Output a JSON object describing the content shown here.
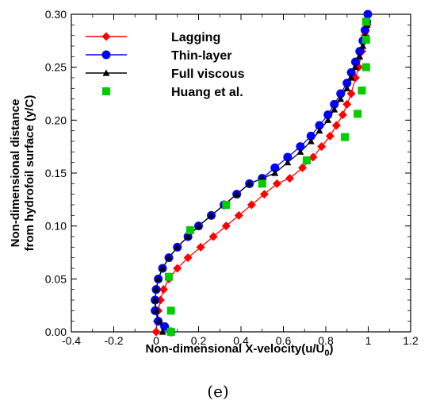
{
  "chart_data": {
    "type": "line",
    "panel_label": "(e)",
    "xlabel_main": "Non-dimensional X-velocity",
    "xlabel_unit": "(u/U",
    "xlabel_sub": "0",
    "xlabel_close": ")",
    "ylabel_line1": "Non-dimensional distance",
    "ylabel_line2": "from hydrofoil surface (y/C)",
    "xlim": [
      -0.4,
      1.2
    ],
    "ylim": [
      0.0,
      0.3
    ],
    "xticks": [
      -0.4,
      -0.2,
      0,
      0.2,
      0.4,
      0.6,
      0.8,
      1,
      1.2
    ],
    "xtick_labels": [
      "-0.4",
      "-0.2",
      "0",
      "0.2",
      "0.4",
      "0.6",
      "0.8",
      "1",
      "1.2"
    ],
    "yticks": [
      0.0,
      0.05,
      0.1,
      0.15,
      0.2,
      0.25,
      0.3
    ],
    "ytick_labels": [
      "0.00",
      "0.05",
      "0.10",
      "0.15",
      "0.20",
      "0.25",
      "0.30"
    ],
    "legend_position": "top-left",
    "series": [
      {
        "name": "Lagging",
        "color": "#ff0000",
        "marker": "diamond",
        "line": true,
        "x": [
          0.0,
          0.005,
          0.01,
          0.02,
          0.035,
          0.06,
          0.1,
          0.15,
          0.21,
          0.27,
          0.33,
          0.39,
          0.45,
          0.51,
          0.57,
          0.63,
          0.69,
          0.74,
          0.78,
          0.82,
          0.85,
          0.88,
          0.9,
          0.92,
          0.94,
          0.955,
          0.97,
          0.985,
          0.995
        ],
        "y": [
          0.0,
          0.01,
          0.02,
          0.03,
          0.04,
          0.05,
          0.06,
          0.07,
          0.08,
          0.09,
          0.1,
          0.11,
          0.12,
          0.13,
          0.14,
          0.145,
          0.155,
          0.165,
          0.175,
          0.185,
          0.195,
          0.205,
          0.215,
          0.225,
          0.24,
          0.25,
          0.265,
          0.28,
          0.29
        ]
      },
      {
        "name": "Thin-layer",
        "color": "#0000ff",
        "marker": "circle",
        "line": true,
        "x": [
          0.07,
          0.04,
          0.01,
          -0.005,
          -0.005,
          0.0,
          0.01,
          0.03,
          0.06,
          0.1,
          0.15,
          0.2,
          0.26,
          0.32,
          0.38,
          0.44,
          0.5,
          0.56,
          0.62,
          0.68,
          0.73,
          0.77,
          0.81,
          0.84,
          0.87,
          0.9,
          0.92,
          0.94,
          0.96,
          0.975,
          0.985,
          0.993,
          0.998
        ],
        "y": [
          0.0,
          0.005,
          0.01,
          0.02,
          0.03,
          0.04,
          0.05,
          0.06,
          0.07,
          0.08,
          0.09,
          0.1,
          0.11,
          0.12,
          0.13,
          0.14,
          0.145,
          0.155,
          0.165,
          0.175,
          0.185,
          0.195,
          0.205,
          0.215,
          0.225,
          0.235,
          0.245,
          0.255,
          0.265,
          0.275,
          0.285,
          0.293,
          0.3
        ]
      },
      {
        "name": "Full viscous",
        "color": "#000000",
        "marker": "triangle",
        "line": true,
        "x": [
          0.03,
          0.015,
          0.0,
          -0.005,
          0.0,
          0.01,
          0.03,
          0.06,
          0.1,
          0.15,
          0.2,
          0.26,
          0.32,
          0.38,
          0.44,
          0.5,
          0.56,
          0.62,
          0.68,
          0.73,
          0.77,
          0.81,
          0.84,
          0.87,
          0.9,
          0.92,
          0.94,
          0.96,
          0.975,
          0.985,
          0.995
        ],
        "y": [
          0.0,
          0.01,
          0.02,
          0.03,
          0.04,
          0.05,
          0.06,
          0.07,
          0.08,
          0.09,
          0.1,
          0.11,
          0.12,
          0.13,
          0.14,
          0.145,
          0.15,
          0.16,
          0.17,
          0.18,
          0.19,
          0.2,
          0.21,
          0.22,
          0.23,
          0.24,
          0.25,
          0.26,
          0.27,
          0.28,
          0.29
        ]
      },
      {
        "name": "Huang et al.",
        "color": "#00cc00",
        "marker": "square",
        "line": false,
        "x": [
          0.07,
          0.07,
          0.06,
          0.16,
          0.33,
          0.5,
          0.71,
          0.89,
          0.95,
          0.97,
          0.99,
          0.99,
          0.99
        ],
        "y": [
          0.0,
          0.02,
          0.052,
          0.096,
          0.12,
          0.14,
          0.162,
          0.184,
          0.206,
          0.228,
          0.25,
          0.276,
          0.293
        ]
      }
    ]
  }
}
